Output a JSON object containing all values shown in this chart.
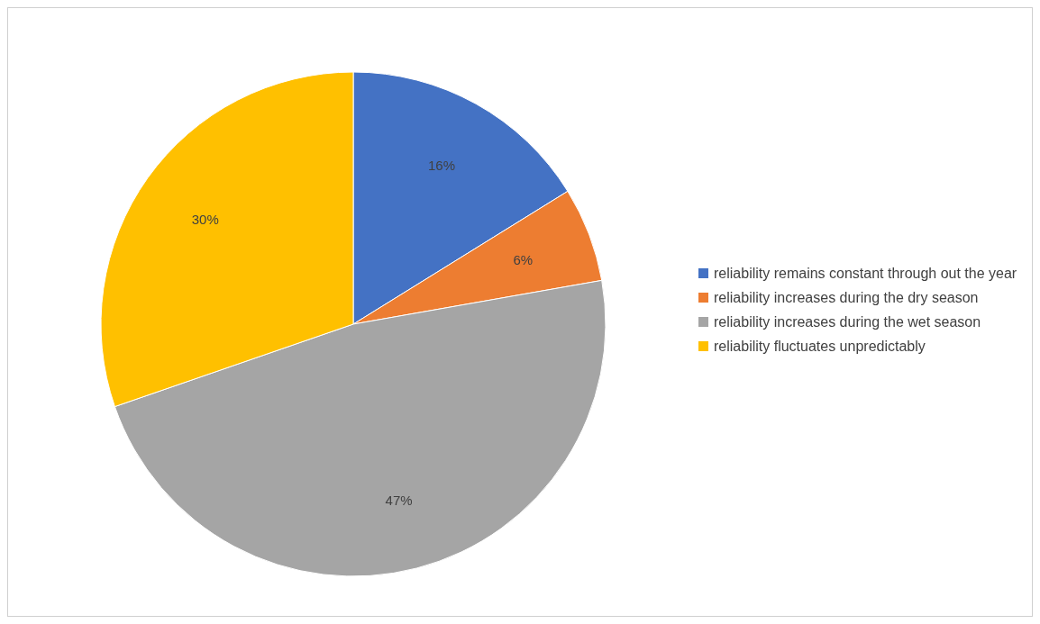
{
  "chart_data": {
    "type": "pie",
    "categories": [
      "reliability remains constant through out the year",
      "reliability increases during the dry season",
      "reliability increases during the wet season",
      "reliability fluctuates unpredictably"
    ],
    "values": [
      16,
      6,
      47,
      30
    ],
    "value_labels": [
      "16%",
      "6%",
      "47%",
      "30%"
    ],
    "colors": [
      "#4472c4",
      "#ed7d31",
      "#a5a5a5",
      "#ffc000"
    ],
    "legend": "right"
  }
}
